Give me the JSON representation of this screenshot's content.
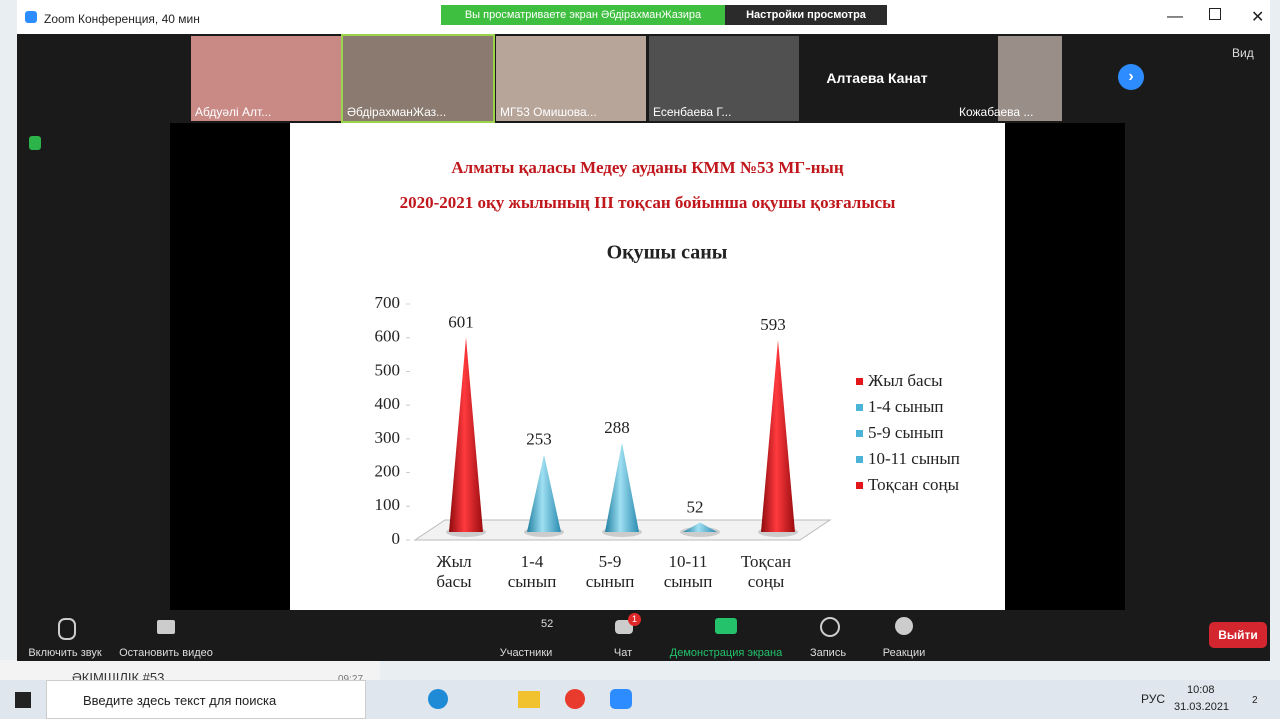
{
  "window": {
    "title": "Zoom Конференция, 40 мин",
    "banner": "Вы просматриваете экран ӘбдірахманЖазира",
    "view_settings": "Настройки просмотра",
    "view": "Вид"
  },
  "background": {
    "chat_name": "ӘКІМШІЛІК #53",
    "time": "09:27"
  },
  "participants": [
    "Абдуәлі Алт...",
    "ӘбдірахманЖаз...",
    "МГ53 Омишова...",
    "Есенбаева Г...",
    "Алтаева Канат",
    "Кожабаева ..."
  ],
  "chart_data": {
    "type": "bar",
    "heading": [
      "Алматы қаласы Медеу ауданы КММ №53 МГ-ның",
      "2020-2021 оқу жылының III тоқсан  бойынша оқушы қозғалысы"
    ],
    "title": "Оқушы саны",
    "categories": [
      "Жыл басы",
      "1-4 сынып",
      "5-9 сынып",
      "10-11 сынып",
      "Тоқсан соңы"
    ],
    "values": [
      601,
      253,
      288,
      52,
      593
    ],
    "colors": [
      "#e3161b",
      "#4bb3d6",
      "#4bb3d6",
      "#4bb3d6",
      "#e3161b"
    ],
    "ylim": [
      0,
      700
    ],
    "yticks": [
      0,
      100,
      200,
      300,
      400,
      500,
      600,
      700
    ],
    "legend": "right"
  },
  "toolbar": {
    "mute": "Включить звук",
    "video": "Остановить видео",
    "participants": "Участники",
    "participants_count": 52,
    "chat": "Чат",
    "chat_badge": 1,
    "share": "Демонстрация экрана",
    "record": "Запись",
    "reactions": "Реакции",
    "leave": "Выйти"
  },
  "taskbar": {
    "search": "Введите здесь текст для поиска",
    "language": "РУС",
    "time": "10:08",
    "date": "31.03.2021",
    "notifications": 2
  }
}
